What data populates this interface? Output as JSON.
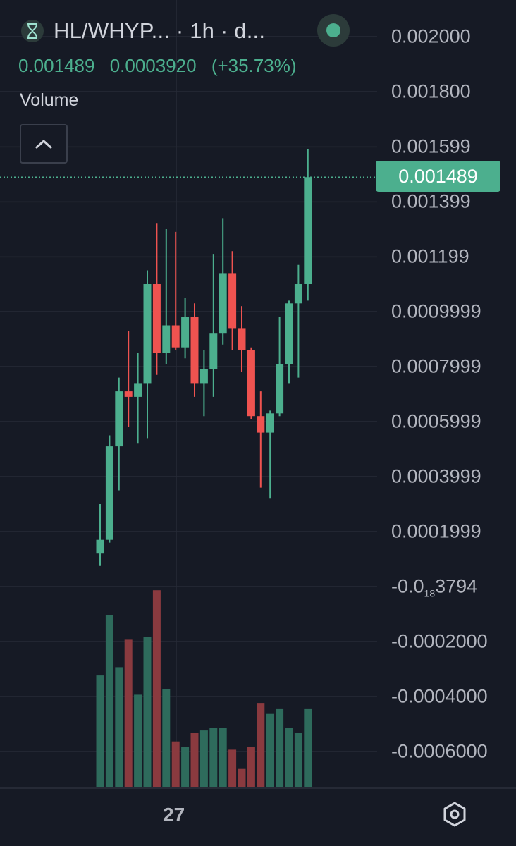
{
  "header": {
    "pair_title": "HL/WHYP... · 1h · d...",
    "price": "0.001489",
    "change": "0.0003920",
    "change_pct": "(+35.73%)",
    "volume_label": "Volume"
  },
  "price_axis": {
    "labels": [
      {
        "value": 0.002,
        "text": "0.002000"
      },
      {
        "value": 0.0018,
        "text": "0.001800"
      },
      {
        "value": 0.001599,
        "text": "0.001599"
      },
      {
        "value": 0.001399,
        "text": "0.001399"
      },
      {
        "value": 0.001199,
        "text": "0.001199"
      },
      {
        "value": 0.0009999,
        "text": "0.0009999"
      },
      {
        "value": 0.0007999,
        "text": "0.0007999"
      },
      {
        "value": 0.0005999,
        "text": "0.0005999"
      },
      {
        "value": 0.0003999,
        "text": "0.0003999"
      },
      {
        "value": 0.0001999,
        "text": "0.0001999"
      },
      {
        "value": 0,
        "text": "-0.0",
        "sub": "18",
        "suffix": "3794"
      },
      {
        "value": -0.0002,
        "text": "-0.0002000"
      },
      {
        "value": -0.0004,
        "text": "-0.0004000"
      },
      {
        "value": -0.0006,
        "text": "-0.0006000"
      }
    ],
    "last_price_tag": "0.001489"
  },
  "time_axis": {
    "label": "27"
  },
  "colors": {
    "background": "#161a25",
    "grid": "#262a36",
    "up": "#4caf8e",
    "down": "#ef5350",
    "volume_up": "#2e6b5c",
    "volume_down": "#8a3a3f",
    "axis_text": "#b2b5be"
  },
  "icons": {
    "logo": "hourglass-logo-icon",
    "status": "live-status-dot-icon",
    "collapse": "chevron-up-icon",
    "settings": "hexagon-settings-icon"
  },
  "chart_data": {
    "type": "candlestick",
    "interval": "1h",
    "ylim": [
      -0.0007,
      0.0021
    ],
    "last_price": 0.001489,
    "grid": true,
    "candles": [
      {
        "o": 0.00012,
        "h": 0.0003,
        "l": 7.5e-05,
        "c": 0.00017
      },
      {
        "o": 0.00017,
        "h": 0.00055,
        "l": 0.00016,
        "c": 0.00051
      },
      {
        "o": 0.00051,
        "h": 0.00076,
        "l": 0.00035,
        "c": 0.00071
      },
      {
        "o": 0.00071,
        "h": 0.00093,
        "l": 0.00058,
        "c": 0.00069
      },
      {
        "o": 0.00069,
        "h": 0.00085,
        "l": 0.00052,
        "c": 0.00074
      },
      {
        "o": 0.00074,
        "h": 0.00115,
        "l": 0.00054,
        "c": 0.0011
      },
      {
        "o": 0.0011,
        "h": 0.00132,
        "l": 0.00077,
        "c": 0.00085
      },
      {
        "o": 0.00085,
        "h": 0.0013,
        "l": 0.00081,
        "c": 0.00095
      },
      {
        "o": 0.00095,
        "h": 0.00129,
        "l": 0.00086,
        "c": 0.00087
      },
      {
        "o": 0.00087,
        "h": 0.00105,
        "l": 0.00083,
        "c": 0.00098
      },
      {
        "o": 0.00098,
        "h": 0.00103,
        "l": 0.00069,
        "c": 0.00074
      },
      {
        "o": 0.00074,
        "h": 0.00086,
        "l": 0.00062,
        "c": 0.00079
      },
      {
        "o": 0.00079,
        "h": 0.00121,
        "l": 0.00069,
        "c": 0.00092
      },
      {
        "o": 0.00092,
        "h": 0.00134,
        "l": 0.00088,
        "c": 0.00114
      },
      {
        "o": 0.00114,
        "h": 0.00122,
        "l": 0.00086,
        "c": 0.00094
      },
      {
        "o": 0.00094,
        "h": 0.00102,
        "l": 0.00078,
        "c": 0.00086
      },
      {
        "o": 0.00086,
        "h": 0.00087,
        "l": 0.00061,
        "c": 0.00062
      },
      {
        "o": 0.00062,
        "h": 0.00071,
        "l": 0.00036,
        "c": 0.00056
      },
      {
        "o": 0.00056,
        "h": 0.00064,
        "l": 0.00032,
        "c": 0.00063
      },
      {
        "o": 0.00063,
        "h": 0.00098,
        "l": 0.00062,
        "c": 0.00081
      },
      {
        "o": 0.00081,
        "h": 0.00104,
        "l": 0.00074,
        "c": 0.00103
      },
      {
        "o": 0.00103,
        "h": 0.00117,
        "l": 0.00076,
        "c": 0.0011
      },
      {
        "o": 0.0011,
        "h": 0.00159,
        "l": 0.00104,
        "c": 0.001489
      }
    ],
    "volumes": [
      0.41,
      0.63,
      0.44,
      0.54,
      0.34,
      0.55,
      0.72,
      0.36,
      0.17,
      0.15,
      0.2,
      0.21,
      0.22,
      0.22,
      0.14,
      0.07,
      0.15,
      0.31,
      0.27,
      0.29,
      0.22,
      0.2,
      0.29
    ]
  }
}
